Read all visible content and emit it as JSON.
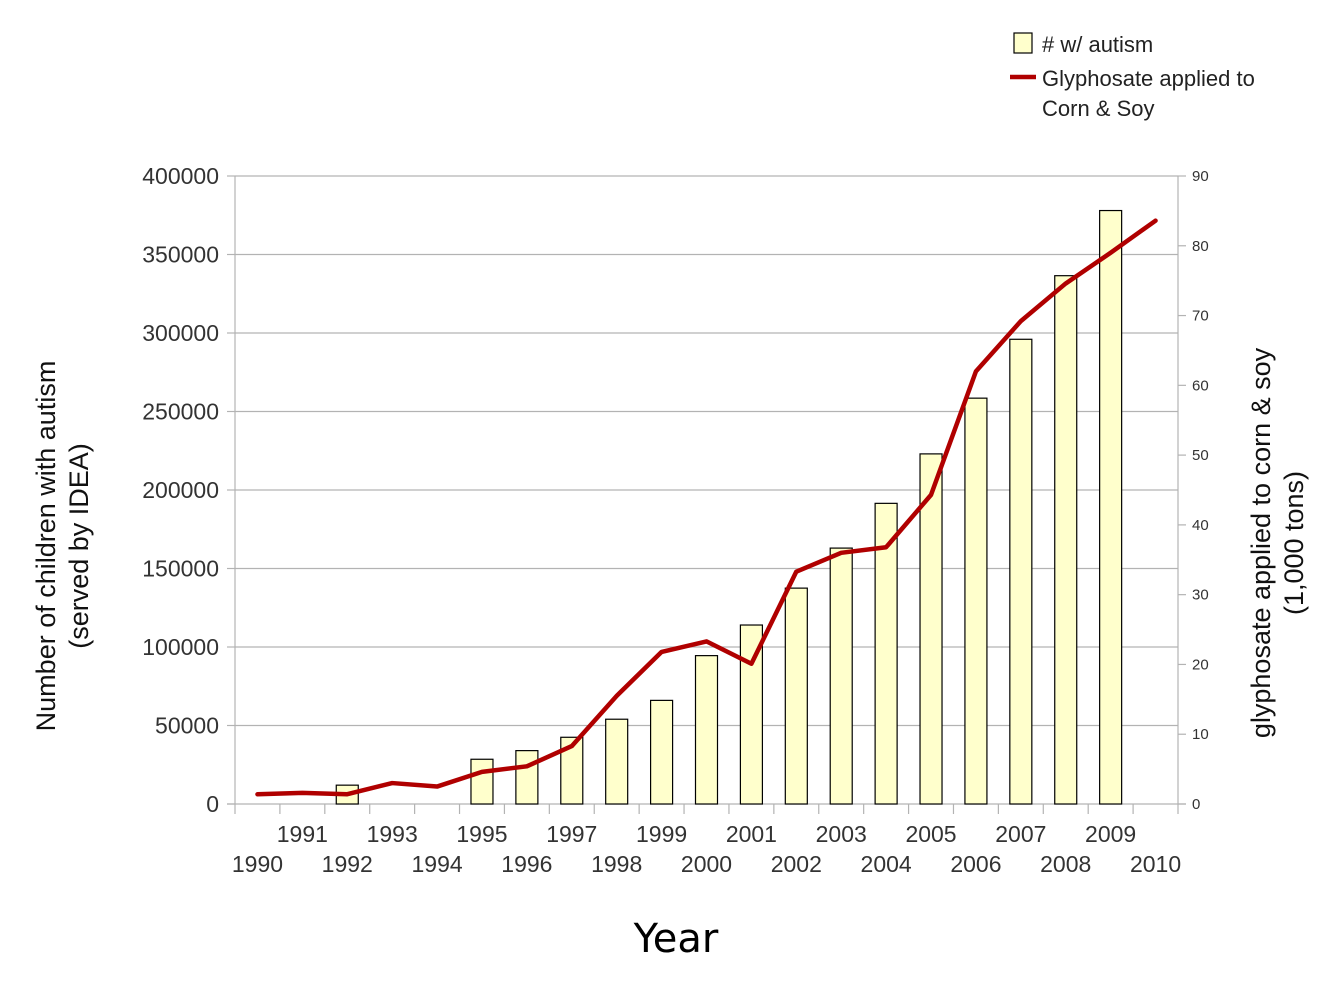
{
  "chart_data": {
    "type": "bar",
    "xlabel": "Year",
    "ylabel": [
      "Number of children with autism",
      "(served by IDEA)"
    ],
    "y2label": [
      "glyphosate applied to corn & soy",
      "(1,000 tons)"
    ],
    "ylim": [
      0,
      400000
    ],
    "y2lim": [
      0,
      90
    ],
    "yticks": [
      "0",
      "50000",
      "100000",
      "150000",
      "200000",
      "250000",
      "300000",
      "350000",
      "400000"
    ],
    "y2ticks": [
      "0",
      "10",
      "20",
      "30",
      "40",
      "50",
      "60",
      "70",
      "80",
      "90"
    ],
    "xticks": [
      "1990",
      "1991",
      "1992",
      "1993",
      "1994",
      "1995",
      "1996",
      "1997",
      "1998",
      "1999",
      "2000",
      "2001",
      "2002",
      "2003",
      "2004",
      "2005",
      "2006",
      "2007",
      "2008",
      "2009",
      "2010"
    ],
    "legend_position": "top-right",
    "series": [
      {
        "name": "# w/ autism",
        "kind": "bar",
        "axis": "left",
        "color": "#ffffcc",
        "edge_color": "#000000",
        "x": [
          1992,
          1995,
          1996,
          1997,
          1998,
          1999,
          2000,
          2001,
          2002,
          2003,
          2004,
          2005,
          2006,
          2007,
          2008,
          2009
        ],
        "values": [
          12000,
          28500,
          34000,
          42500,
          54000,
          66000,
          94500,
          114000,
          137500,
          163000,
          191500,
          223000,
          258500,
          296000,
          336500,
          378000
        ]
      },
      {
        "name": "Glyphosate applied to Corn & Soy",
        "kind": "line",
        "axis": "right",
        "color": "#b00000",
        "x": [
          1990,
          1991,
          1992,
          1993,
          1994,
          1995,
          1996,
          1997,
          1998,
          1999,
          2000,
          2001,
          2002,
          2003,
          2004,
          2005,
          2006,
          2007,
          2008,
          2009,
          2010
        ],
        "values": [
          1.4,
          1.6,
          1.4,
          3.0,
          2.5,
          4.6,
          5.4,
          8.3,
          15.5,
          21.8,
          23.3,
          20.1,
          33.3,
          36.0,
          36.8,
          44.3,
          62.0,
          69.2,
          74.6,
          79.0,
          83.6
        ]
      }
    ]
  }
}
